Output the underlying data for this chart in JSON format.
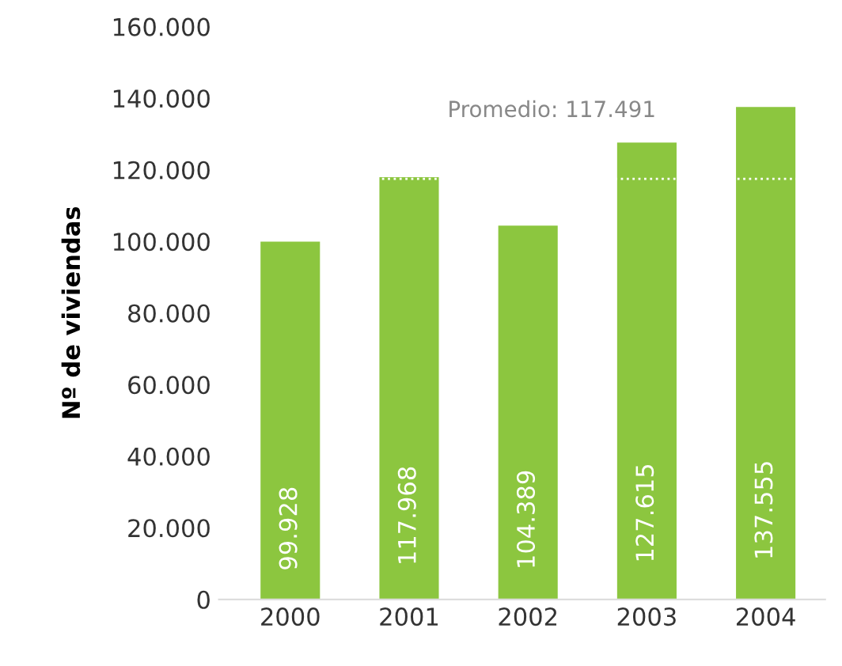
{
  "chart_data": {
    "type": "bar",
    "ylabel": "Nº de viviendas",
    "categories": [
      "2000",
      "2001",
      "2002",
      "2003",
      "2004"
    ],
    "values": [
      99928,
      117968,
      104389,
      127615,
      137555
    ],
    "value_labels": [
      "99.928",
      "117.968",
      "104.389",
      "127.615",
      "137.555"
    ],
    "color": "#8cc63f",
    "ylim": [
      0,
      160000
    ],
    "yticks": [
      {
        "value": 0,
        "label": "0"
      },
      {
        "value": 20000,
        "label": "20.000"
      },
      {
        "value": 40000,
        "label": "40.000"
      },
      {
        "value": 60000,
        "label": "60.000"
      },
      {
        "value": 80000,
        "label": "80.000"
      },
      {
        "value": 100000,
        "label": "100.000"
      },
      {
        "value": 120000,
        "label": "120.000"
      },
      {
        "value": 140000,
        "label": "140.000"
      },
      {
        "value": 160000,
        "label": "160.000"
      }
    ],
    "ref_lines": [
      {
        "axis": "y",
        "value": 117491,
        "label": "Promedio: 117.491",
        "color": "#ffffff",
        "line_style": "dotted"
      }
    ],
    "grid": false,
    "legend": false
  }
}
